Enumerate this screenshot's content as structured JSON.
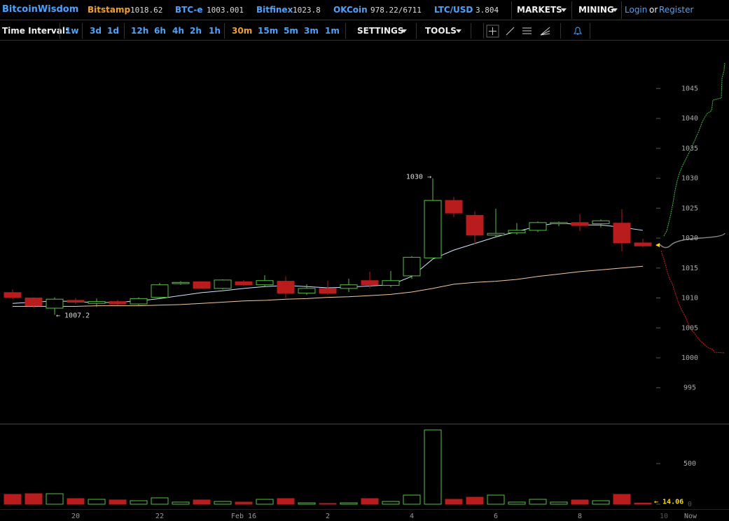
{
  "header": {
    "brand": "BitcoinWisdom",
    "tickers": [
      {
        "name": "Bitstamp",
        "price": "1018.62"
      },
      {
        "name": "BTC-e",
        "price": "1003.001"
      },
      {
        "name": "Bitfinex",
        "price": "1023.8"
      },
      {
        "name": "OKCoin",
        "price": "978.22/6711"
      },
      {
        "name": "LTC/USD",
        "price": "3.804"
      }
    ],
    "menus": [
      "MARKETS",
      "MINING"
    ],
    "login": "Login",
    "or": "or",
    "register": "Register"
  },
  "toolbar": {
    "label": "Time Interval:",
    "intervals": [
      "1w",
      "3d",
      "1d",
      "12h",
      "6h",
      "4h",
      "2h",
      "1h",
      "30m",
      "15m",
      "5m",
      "3m",
      "1m"
    ],
    "settings": "SETTINGS",
    "tools": "TOOLS"
  },
  "chart_data": {
    "type": "candlestick",
    "categories": [
      null,
      null,
      null,
      "20",
      null,
      null,
      null,
      "22",
      null,
      null,
      null,
      "Feb 16",
      null,
      null,
      null,
      "2",
      null,
      null,
      null,
      "4",
      null,
      null,
      null,
      "6",
      null,
      null,
      null,
      "8",
      null,
      null,
      null,
      "10"
    ],
    "now_label": "Now",
    "open": [
      1010.9,
      1010.0,
      1008.3,
      1009.6,
      1009.1,
      1009.4,
      1009.0,
      1010.1,
      1012.4,
      1012.7,
      1011.6,
      1012.7,
      1012.2,
      1012.8,
      1010.8,
      1011.6,
      1011.6,
      1012.9,
      1012.1,
      1013.7,
      1016.7,
      1026.3,
      1023.8,
      1020.5,
      1020.9,
      1021.3,
      1022.4,
      1022.6,
      1022.4,
      1022.5,
      1019.2,
      null
    ],
    "high": [
      1011.4,
      1010.1,
      1010.1,
      1010.0,
      1009.9,
      1009.7,
      1010.1,
      1012.5,
      1012.8,
      1012.8,
      1013.1,
      1013.0,
      1013.8,
      1013.6,
      1012.3,
      1012.9,
      1013.2,
      1014.4,
      1014.5,
      1017.0,
      1030.0,
      1026.9,
      1024.5,
      1024.9,
      1022.5,
      1022.8,
      1022.8,
      1024.0,
      1023.1,
      1024.8,
      1019.9,
      null
    ],
    "low": [
      1009.8,
      1008.3,
      1007.2,
      1009.0,
      1008.5,
      1008.8,
      1008.8,
      1009.9,
      1012.2,
      1011.5,
      1011.4,
      1012.0,
      1011.9,
      1010.0,
      1010.5,
      1010.5,
      1011.0,
      1011.6,
      1011.8,
      1013.2,
      1016.7,
      1023.5,
      1019.0,
      1020.2,
      1020.6,
      1021.0,
      1022.0,
      1021.2,
      1021.8,
      1017.8,
      1018.5,
      null
    ],
    "close": [
      1010.1,
      1008.7,
      1009.8,
      1009.3,
      1009.4,
      1009.0,
      1009.9,
      1012.2,
      1012.6,
      1011.6,
      1013.0,
      1012.2,
      1012.9,
      1010.8,
      1011.6,
      1010.8,
      1012.2,
      1012.2,
      1012.9,
      1016.8,
      1026.3,
      1024.2,
      1020.5,
      1020.8,
      1021.3,
      1022.6,
      1022.6,
      1022.1,
      1022.9,
      1019.2,
      1018.7,
      null
    ],
    "volume": [
      121,
      129,
      129,
      69,
      60,
      52,
      43,
      78,
      26,
      52,
      34,
      26,
      60,
      69,
      17,
      9,
      17,
      69,
      34,
      112,
      914,
      60,
      86,
      112,
      26,
      60,
      26,
      52,
      43,
      121,
      14.06,
      null
    ],
    "ema_lines": [
      {
        "color": "#cfe6ff",
        "values": [
          1009.1,
          1009.3,
          1009.5,
          1009.4,
          1009.2,
          1009.3,
          1009.5,
          1009.9,
          1010.4,
          1010.9,
          1011.2,
          1011.6,
          1011.9,
          1012.1,
          1011.9,
          1011.7,
          1011.8,
          1012.0,
          1012.2,
          1013.6,
          1016.5,
          1018.0,
          1019.1,
          1020.2,
          1021.1,
          1022.0,
          1022.6,
          1022.2,
          1022.2,
          1021.8,
          1021.3,
          null
        ]
      },
      {
        "color": "#f5c89a",
        "values": [
          1008.6,
          1008.6,
          1008.6,
          1008.6,
          1008.7,
          1008.7,
          1008.7,
          1008.8,
          1008.9,
          1009.1,
          1009.3,
          1009.5,
          1009.6,
          1009.8,
          1009.9,
          1010.1,
          1010.2,
          1010.4,
          1010.6,
          1011.0,
          1011.6,
          1012.3,
          1012.6,
          1012.8,
          1013.1,
          1013.6,
          1014.0,
          1014.4,
          1014.7,
          1015.0,
          1015.3,
          null
        ]
      }
    ],
    "up_color": "#55c240",
    "down_color": "#b81c1c",
    "ylim": [
      989,
      1053
    ],
    "yticks": [
      995,
      1000,
      1005,
      1010,
      1015,
      1020,
      1025,
      1030,
      1035,
      1040,
      1045
    ],
    "volume_ylim": [
      0,
      974
    ],
    "volume_yticks": [
      0,
      500
    ],
    "annotations": {
      "high": "1030 →",
      "low": "← 1007.2",
      "volume": "← 14.06"
    }
  }
}
